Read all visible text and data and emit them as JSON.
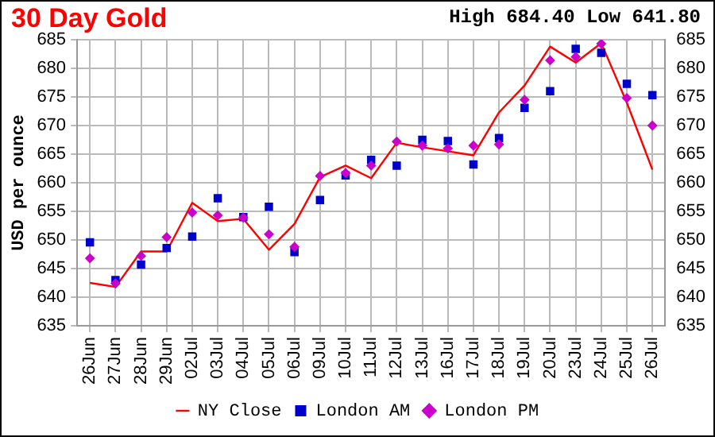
{
  "chart_data": {
    "type": "line",
    "title": "30 Day Gold",
    "annotations": [
      "High 684.40 Low 641.80"
    ],
    "ylabel": "USD per ounce",
    "categories": [
      "26Jun",
      "27Jun",
      "28Jun",
      "29Jun",
      "02Jul",
      "03Jul",
      "04Jul",
      "05Jul",
      "06Jul",
      "09Jul",
      "10Jul",
      "11Jul",
      "12Jul",
      "13Jul",
      "16Jul",
      "17Jul",
      "18Jul",
      "19Jul",
      "20Jul",
      "23Jul",
      "24Jul",
      "25Jul",
      "26Jul"
    ],
    "series": [
      {
        "name": "NY Close",
        "color": "#ff0000",
        "marker": "none",
        "line_style": "solid",
        "values": [
          642.5,
          641.8,
          648,
          648,
          656.5,
          653.3,
          653.7,
          648.3,
          652.8,
          661,
          663,
          660.8,
          667,
          666.2,
          665.5,
          664.8,
          672.3,
          677,
          683.8,
          681,
          684.4,
          674,
          662.3
        ]
      },
      {
        "name": "London AM",
        "type": "scatter",
        "color": "#0000cc",
        "marker": "square",
        "values": [
          649.6,
          643,
          645.7,
          648.6,
          650.6,
          657.3,
          654,
          655.8,
          647.9,
          657,
          661.3,
          664,
          663,
          667.5,
          667.3,
          663.2,
          667.8,
          673.1,
          676,
          683.4,
          682.7,
          677.3,
          675.3
        ]
      },
      {
        "name": "London PM",
        "type": "scatter",
        "color": "#cc00cc",
        "marker": "diamond",
        "values": [
          646.8,
          642.4,
          647.2,
          650.5,
          654.8,
          654.3,
          653.9,
          651,
          648.8,
          661.2,
          661.7,
          663,
          667.2,
          666.5,
          666,
          666.5,
          666.7,
          674.5,
          681.4,
          682,
          684.3,
          674.8,
          670
        ]
      }
    ],
    "ylim": [
      635,
      685
    ],
    "yticks": [
      635,
      640,
      645,
      650,
      655,
      660,
      665,
      670,
      675,
      680,
      685
    ],
    "y2lim": [
      635,
      685
    ],
    "y2ticks": [
      635,
      640,
      645,
      650,
      655,
      660,
      665,
      670,
      675,
      680,
      685
    ],
    "grid": true,
    "legend": "bottom"
  }
}
